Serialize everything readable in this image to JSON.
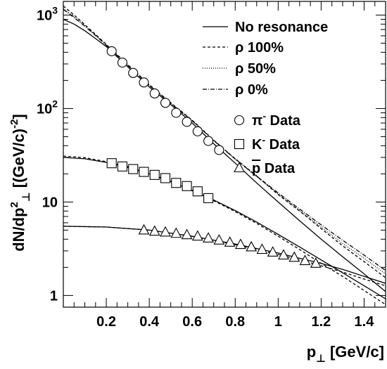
{
  "chart_data": {
    "type": "line",
    "scale_y": "log",
    "xlim": [
      0.0,
      1.5
    ],
    "ylim": [
      0.75,
      1400
    ],
    "grid": false,
    "legend_position": "top-right",
    "xlabel": {
      "main": "p",
      "sub": "⊥",
      "unit": " [GeV/c]"
    },
    "ylabel": {
      "main": "dN/dp",
      "sup": "2",
      "sub": "⊥",
      "unit_open": " [(GeV/c)",
      "unit_sup": "-2",
      "unit_close": "]"
    },
    "x_ticks": [
      {
        "value": 0.2,
        "label": "0.2"
      },
      {
        "value": 0.4,
        "label": "0.4"
      },
      {
        "value": 0.6,
        "label": "0.6"
      },
      {
        "value": 0.8,
        "label": "0.8"
      },
      {
        "value": 1.0,
        "label": "1"
      },
      {
        "value": 1.2,
        "label": "1.2"
      },
      {
        "value": 1.4,
        "label": "1.4"
      }
    ],
    "y_ticks": [
      {
        "value": 1,
        "base": "1",
        "exp": ""
      },
      {
        "value": 10,
        "base": "10",
        "exp": ""
      },
      {
        "value": 100,
        "base": "10",
        "exp": "2"
      },
      {
        "value": 1000,
        "base": "10",
        "exp": "3"
      }
    ],
    "legend": [
      {
        "label": "No resonance",
        "marker": "line",
        "dash": ""
      },
      {
        "label": "ρ 100%",
        "marker": "line",
        "dash": "4,3"
      },
      {
        "label": "ρ 50%",
        "marker": "line",
        "dash": "1,2"
      },
      {
        "label": "ρ 0%",
        "marker": "line",
        "dash": "6,2,1,2"
      },
      {
        "label": "Data",
        "particle": "π",
        "charge": "-",
        "marker": "circle"
      },
      {
        "label": "Data",
        "particle": "K",
        "charge": "-",
        "marker": "square"
      },
      {
        "label": "Data",
        "particle": "p",
        "overline": true,
        "marker": "triangle"
      }
    ],
    "data_series": [
      {
        "particle": "pi-",
        "marker": "circle",
        "x": [
          0.225,
          0.275,
          0.325,
          0.375,
          0.425,
          0.475,
          0.525,
          0.575,
          0.625,
          0.675,
          0.725
        ],
        "y": [
          410,
          310,
          240,
          190,
          145,
          115,
          90,
          72,
          57,
          45,
          36
        ]
      },
      {
        "particle": "K-",
        "marker": "square",
        "x": [
          0.225,
          0.275,
          0.325,
          0.375,
          0.425,
          0.475,
          0.525,
          0.575,
          0.625,
          0.675
        ],
        "y": [
          26,
          24,
          22.5,
          21,
          19.5,
          18,
          16,
          14.8,
          13,
          11
        ]
      },
      {
        "particle": "pbar",
        "marker": "triangle",
        "x": [
          0.375,
          0.425,
          0.475,
          0.525,
          0.575,
          0.625,
          0.675,
          0.725,
          0.775,
          0.825,
          0.875,
          0.925,
          0.975,
          1.025,
          1.075,
          1.125,
          1.175
        ],
        "y": [
          5.0,
          4.85,
          4.75,
          4.6,
          4.45,
          4.3,
          4.1,
          3.9,
          3.7,
          3.5,
          3.3,
          3.1,
          2.9,
          2.7,
          2.55,
          2.35,
          2.2
        ]
      }
    ],
    "model_curves": [
      {
        "particle": "pi-",
        "variant": "No resonance",
        "dash": "",
        "x": [
          0.0,
          0.05,
          0.1,
          0.15,
          0.2,
          0.3,
          0.4,
          0.5,
          0.6,
          0.7,
          0.8,
          0.9,
          1.0,
          1.1,
          1.2,
          1.3,
          1.4,
          1.5
        ],
        "y": [
          900,
          800,
          680,
          560,
          460,
          280,
          170,
          110,
          70,
          42,
          26,
          16,
          10,
          6.3,
          4.0,
          2.6,
          1.7,
          1.1
        ]
      },
      {
        "particle": "pi-",
        "variant": "ρ 100%",
        "dash": "4,3",
        "x": [
          0.0,
          0.05,
          0.1,
          0.15,
          0.2,
          0.3,
          0.4,
          0.5,
          0.6,
          0.7,
          0.8,
          0.9,
          1.0,
          1.1,
          1.2,
          1.3,
          1.4,
          1.5
        ],
        "y": [
          1250,
          1000,
          790,
          620,
          485,
          295,
          180,
          115,
          75,
          46,
          29,
          19,
          12,
          8.0,
          5.2,
          3.4,
          2.3,
          1.55
        ]
      },
      {
        "particle": "pi-",
        "variant": "ρ 50%",
        "dash": "1,2",
        "x": [
          0.0,
          0.05,
          0.1,
          0.15,
          0.2,
          0.3,
          0.4,
          0.5,
          0.6,
          0.7,
          0.8,
          0.9,
          1.0,
          1.1,
          1.2,
          1.3,
          1.4,
          1.5
        ],
        "y": [
          1180,
          960,
          770,
          610,
          478,
          292,
          178,
          114,
          74,
          45.5,
          28.7,
          18.7,
          12.2,
          8.1,
          5.4,
          3.6,
          2.5,
          1.7
        ]
      },
      {
        "particle": "pi-",
        "variant": "ρ 0%",
        "dash": "6,2,1,2",
        "x": [
          0.0,
          0.05,
          0.1,
          0.15,
          0.2,
          0.3,
          0.4,
          0.5,
          0.6,
          0.7,
          0.8,
          0.9,
          1.0,
          1.1,
          1.2,
          1.3,
          1.4,
          1.5
        ],
        "y": [
          1150,
          940,
          760,
          605,
          475,
          290,
          177,
          113,
          74,
          45.5,
          28.8,
          18.9,
          12.5,
          8.4,
          5.7,
          3.9,
          2.7,
          1.85
        ]
      },
      {
        "particle": "K-",
        "variant": "No resonance",
        "dash": "",
        "x": [
          0.0,
          0.1,
          0.2,
          0.3,
          0.4,
          0.5,
          0.6,
          0.7,
          0.8,
          0.9,
          1.0,
          1.1,
          1.2,
          1.3,
          1.4,
          1.5
        ],
        "y": [
          30,
          29,
          26.5,
          23.5,
          20,
          16.5,
          13.3,
          10.5,
          8.1,
          6.1,
          4.5,
          3.3,
          2.4,
          1.75,
          1.27,
          0.92
        ]
      },
      {
        "particle": "K-",
        "variant": "ρ 100%",
        "dash": "4,3",
        "x": [
          0.0,
          0.1,
          0.2,
          0.3,
          0.4,
          0.5,
          0.6,
          0.7,
          0.8,
          0.9,
          1.0,
          1.1,
          1.2,
          1.3,
          1.4,
          1.5
        ],
        "y": [
          31,
          29.8,
          27,
          23.8,
          20.2,
          16.6,
          13.2,
          10.3,
          7.9,
          5.9,
          4.3,
          3.1,
          2.2,
          1.6,
          1.13,
          0.8
        ]
      },
      {
        "particle": "pbar",
        "variant": "No resonance",
        "dash": "",
        "x": [
          0.0,
          0.2,
          0.4,
          0.6,
          0.8,
          1.0,
          1.1,
          1.2,
          1.3,
          1.4,
          1.5
        ],
        "y": [
          5.5,
          5.4,
          5.0,
          4.3,
          3.55,
          2.85,
          2.5,
          2.2,
          1.9,
          1.6,
          1.35
        ]
      },
      {
        "particle": "pbar",
        "variant": "ρ 100%",
        "dash": "4,3",
        "x": [
          0.0,
          0.2,
          0.4,
          0.6,
          0.8,
          1.0,
          1.1,
          1.2,
          1.3,
          1.4,
          1.5
        ],
        "y": [
          5.5,
          5.4,
          5.0,
          4.3,
          3.5,
          2.75,
          2.4,
          2.08,
          1.78,
          1.5,
          1.27
        ]
      }
    ]
  }
}
